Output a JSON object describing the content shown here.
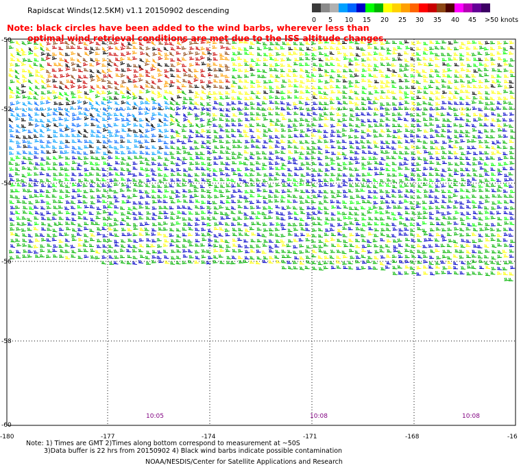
{
  "header": {
    "title": "Rapidscat Winds(12.5KM) v1.1 20150902 descending",
    "note_line1": "Note: black circles have been added to the wind barbs, wherever less than",
    "note_line2": "optimal wind retrieval conditions are met due to the ISS altitude changes."
  },
  "scale": {
    "labels": [
      "0",
      "5",
      "10",
      "15",
      "20",
      "25",
      "30",
      "35",
      "40",
      "45",
      ">50 knots"
    ],
    "colors": [
      "#3a3a3a",
      "#8a8a8a",
      "#b0b0b0",
      "#00a0ff",
      "#0064ff",
      "#0000c8",
      "#00ff00",
      "#00b400",
      "#ffff00",
      "#ffd200",
      "#ffa000",
      "#ff6400",
      "#ff0000",
      "#c80000",
      "#8c4614",
      "#500000",
      "#ff00ff",
      "#b400b4",
      "#640096",
      "#3c0064"
    ]
  },
  "map": {
    "lat_labels": [
      "-50",
      "-52",
      "-54",
      "-56",
      "-58",
      "-60"
    ],
    "lon_labels": [
      "-180",
      "-177",
      "-174",
      "-171",
      "-168",
      "-16"
    ],
    "times": [
      "10:05",
      "10:08",
      "10:08"
    ]
  },
  "footer": {
    "line1": "Note: 1) Times are GMT 2)Times along bottom correspond to measurement at ~50S",
    "line2": "3)Data buffer is 22 hrs from 20150902 4) Black wind barbs indicate possible contamination",
    "line3": "NOAA/NESDIS/Center for Satellite Applications and Research"
  }
}
